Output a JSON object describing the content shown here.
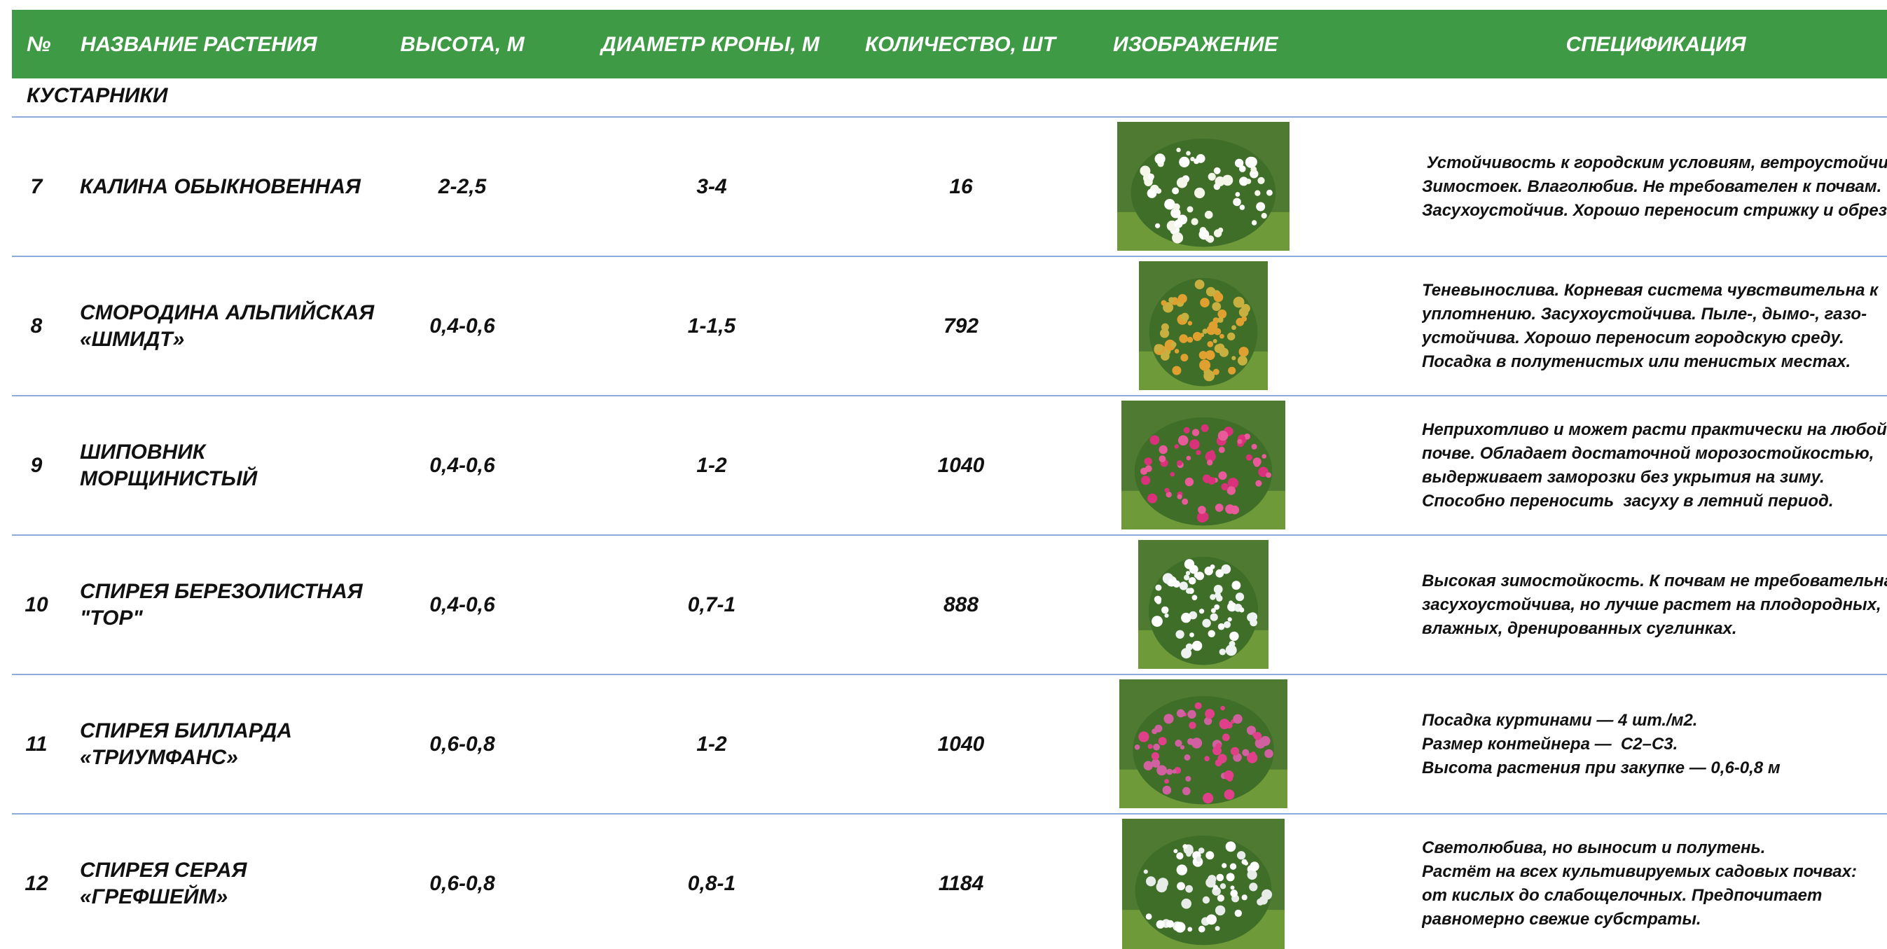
{
  "header": {
    "columns": [
      "№",
      "НАЗВАНИЕ РАСТЕНИЯ",
      "ВЫСОТА, М",
      "ДИАМЕТР КРОНЫ, М",
      "КОЛИЧЕСТВО, ШТ",
      "ИЗОБРАЖЕНИЕ",
      "СПЕЦИФИКАЦИЯ"
    ]
  },
  "section": "КУСТАРНИКИ",
  "rows": [
    {
      "num": 7,
      "name": "КАЛИНА ОБЫКНОВЕННАЯ",
      "height": "2-2,5",
      "diameter": "3-4",
      "qty": 16,
      "spec": [
        " Устойчивость к городским условиям, ветроустойчивость.",
        "Зимостоек. Влаголюбив. Не требователен к почвам.",
        "Засухоустойчив. Хорошо переносит стрижку и обрезку."
      ]
    },
    {
      "num": 8,
      "name": "СМОРОДИНА АЛЬПИЙСКАЯ «ШМИДТ»",
      "height": "0,4-0,6",
      "diameter": "1-1,5",
      "qty": 792,
      "spec": [
        "Теневынослива. Корневая система чувствительна к",
        "уплотнению. Засухоустойчива. Пыле-, дымо-, газо-",
        "устойчива. Хорошо переносит городскую среду.",
        "Посадка в полутенистых или тенистых местах."
      ]
    },
    {
      "num": 9,
      "name": "ШИПОВНИК МОРЩИНИСТЫЙ",
      "height": "0,4-0,6",
      "diameter": "1-2",
      "qty": 1040,
      "spec": [
        "Неприхотливо и может расти практически на любой",
        "почве. Обладает достаточной морозостойкостью,",
        "выдерживает заморозки без укрытия на зиму.",
        "Способно переносить  засуху в летний период."
      ]
    },
    {
      "num": 10,
      "name": "СПИРЕЯ БЕРЕЗОЛИСТНАЯ \"ТОР\"",
      "height": "0,4-0,6",
      "diameter": "0,7-1",
      "qty": 888,
      "spec": [
        "Высокая зимостойкость. К почвам не требовательна,",
        "засухоустойчива, но лучше растет на плодородных,",
        "влажных, дренированных суглинках."
      ]
    },
    {
      "num": 11,
      "name": "СПИРЕЯ БИЛЛАРДА «ТРИУМФАНС»",
      "height": "0,6-0,8",
      "diameter": "1-2",
      "qty": 1040,
      "spec": [
        "Посадка куртинами — 4 шт./м2.",
        "Размер контейнера —  С2–С3.",
        "Высота растения при закупке — 0,6-0,8 м"
      ]
    },
    {
      "num": 12,
      "name": "СПИРЕЯ СЕРАЯ «ГРЕФШЕЙМ»",
      "height": "0,6-0,8",
      "diameter": "0,8-1",
      "qty": 1184,
      "spec": [
        "Светолюбива, но выносит и полутень.",
        "Растёт на всех культивируемых садовых почвах:",
        "от кислых до слабощелочных. Предпочитает",
        "равномерно свежие субстраты."
      ]
    }
  ]
}
